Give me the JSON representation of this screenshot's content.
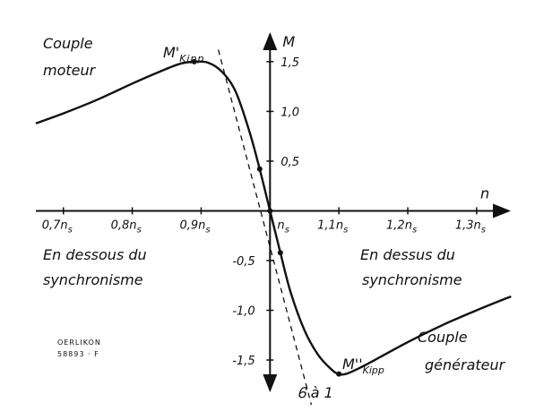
{
  "chart_data": {
    "type": "line",
    "title": "",
    "xlabel": "n",
    "ylabel": "M",
    "xlim": [
      0.66,
      1.36
    ],
    "ylim": [
      -1.95,
      1.85
    ],
    "x_ticks": [
      {
        "value": 0.7,
        "label": "0,7n"
      },
      {
        "value": 0.8,
        "label": "0,8n"
      },
      {
        "value": 0.9,
        "label": "0,9n"
      },
      {
        "value": 1.0,
        "label": "n"
      },
      {
        "value": 1.1,
        "label": "1,1n"
      },
      {
        "value": 1.2,
        "label": "1,2n"
      },
      {
        "value": 1.3,
        "label": "1,3n"
      }
    ],
    "x_tick_subscript": "s",
    "y_ticks": [
      {
        "value": 1.5,
        "label": "1,5"
      },
      {
        "value": 1.0,
        "label": "1,0"
      },
      {
        "value": 0.5,
        "label": "0,5"
      },
      {
        "value": -0.5,
        "label": "-0,5"
      },
      {
        "value": -1.0,
        "label": "-1,0"
      },
      {
        "value": -1.5,
        "label": "-1,5"
      }
    ],
    "series": [
      {
        "x": [
          0.66,
          0.7,
          0.75,
          0.8,
          0.84,
          0.87,
          0.89,
          0.91,
          0.93,
          0.95,
          0.97,
          0.985,
          1.0,
          1.015,
          1.03,
          1.05,
          1.07,
          1.09,
          1.1,
          1.11,
          1.13,
          1.16,
          1.2,
          1.25,
          1.3,
          1.35
        ],
        "y": [
          0.88,
          0.98,
          1.12,
          1.28,
          1.4,
          1.48,
          1.5,
          1.49,
          1.4,
          1.2,
          0.8,
          0.42,
          0.0,
          -0.42,
          -0.82,
          -1.2,
          -1.45,
          -1.6,
          -1.64,
          -1.64,
          -1.58,
          -1.47,
          -1.32,
          -1.15,
          -1.0,
          -0.86
        ]
      }
    ],
    "tangent_line": {
      "x": [
        0.925,
        1.06
      ],
      "y": [
        1.62,
        -1.95
      ]
    },
    "annotations": {
      "m_kipp_motor": "M'",
      "m_kipp_generator": "M''",
      "kipp_subscript": "Kipp",
      "couple_moteur": [
        "Couple",
        "moteur"
      ],
      "couple_generateur": [
        "Couple",
        "générateur"
      ],
      "below_sync": [
        "En dessous du",
        "synchronisme"
      ],
      "above_sync": [
        "En dessus du",
        "synchronisme"
      ],
      "tangent_label": "Ꮾ à 1",
      "stamp": [
        "OERLIKON",
        "58893 · F"
      ]
    },
    "grid": false,
    "legend": "none"
  }
}
